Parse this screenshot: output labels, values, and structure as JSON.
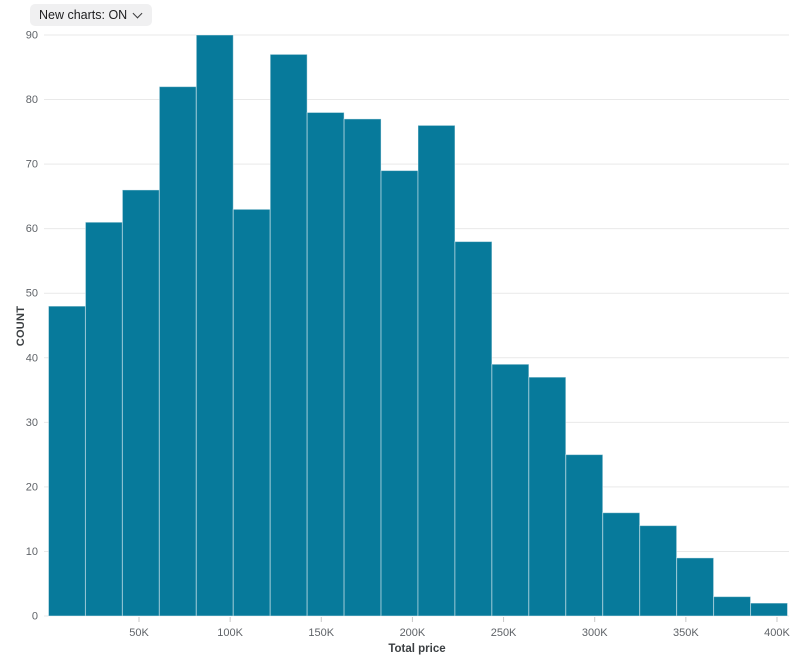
{
  "toolbar": {
    "new_charts_label": "New charts: ON"
  },
  "chart_data": {
    "type": "bar",
    "subtype": "histogram",
    "title": "",
    "xlabel": "Total price",
    "ylabel": "COUNT",
    "bin_start": 0,
    "bin_width": 20000,
    "bin_count": 20,
    "values": [
      48,
      61,
      66,
      82,
      90,
      63,
      87,
      78,
      77,
      69,
      76,
      58,
      39,
      37,
      25,
      16,
      14,
      9,
      3,
      2
    ],
    "x_ticks": [
      {
        "value": 50000,
        "label": "50K"
      },
      {
        "value": 100000,
        "label": "100K"
      },
      {
        "value": 150000,
        "label": "150K"
      },
      {
        "value": 200000,
        "label": "200K"
      },
      {
        "value": 250000,
        "label": "250K"
      },
      {
        "value": 300000,
        "label": "300K"
      },
      {
        "value": 350000,
        "label": "350K"
      },
      {
        "value": 400000,
        "label": "400K"
      }
    ],
    "y_ticks": [
      0,
      10,
      20,
      30,
      40,
      50,
      60,
      70,
      80,
      90
    ],
    "ylim": [
      0,
      90
    ],
    "xlim": [
      0,
      400000
    ],
    "grid": true,
    "legend": "none",
    "colors": {
      "bar": "#077a9b",
      "bar_stroke": "rgba(255,255,255,0.45)",
      "grid": "#e9e9e9",
      "tick_text": "#5f6368",
      "tick_mark": "#c9c9c9",
      "axis_title": "#3c4043"
    }
  }
}
